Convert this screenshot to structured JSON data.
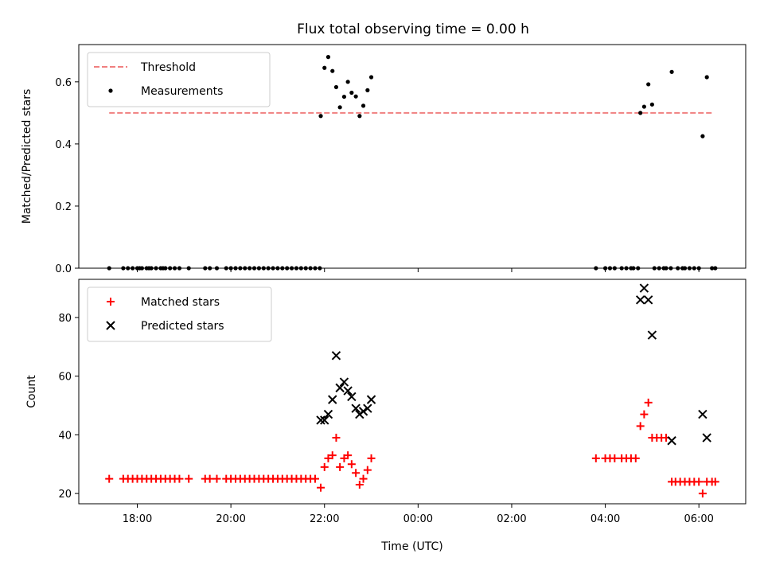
{
  "title": "Flux total observing time = 0.00 h",
  "xlabel": "Time (UTC)",
  "x_ticks": [
    "18:00",
    "20:00",
    "22:00",
    "00:00",
    "02:00",
    "04:00",
    "06:00"
  ],
  "x_tick_hours": [
    18,
    20,
    22,
    24,
    26,
    28,
    30
  ],
  "colors": {
    "threshold": "#f08080",
    "measurements": "#000000",
    "matched": "#ff0000",
    "predicted": "#000000"
  },
  "chart_data": [
    {
      "type": "scatter",
      "ylabel": "Matched/Predicted stars",
      "xlim": [
        16.75,
        31.0
      ],
      "ylim": [
        0,
        0.72
      ],
      "y_ticks": [
        0.0,
        0.2,
        0.4,
        0.6
      ],
      "y_tick_labels": [
        "0.0",
        "0.2",
        "0.4",
        "0.6"
      ],
      "legend_position": "top-left",
      "threshold": {
        "name": "Threshold",
        "y": 0.5,
        "x_range": [
          17.4,
          30.3
        ]
      },
      "series": [
        {
          "name": "Measurements",
          "points": [
            [
              17.4,
              0
            ],
            [
              17.7,
              0
            ],
            [
              17.8,
              0
            ],
            [
              17.9,
              0
            ],
            [
              18.0,
              0
            ],
            [
              18.05,
              0
            ],
            [
              18.1,
              0
            ],
            [
              18.2,
              0
            ],
            [
              18.25,
              0
            ],
            [
              18.3,
              0
            ],
            [
              18.4,
              0
            ],
            [
              18.5,
              0
            ],
            [
              18.55,
              0
            ],
            [
              18.6,
              0
            ],
            [
              18.7,
              0
            ],
            [
              18.8,
              0
            ],
            [
              18.9,
              0
            ],
            [
              19.1,
              0
            ],
            [
              19.45,
              0
            ],
            [
              19.55,
              0
            ],
            [
              19.7,
              0
            ],
            [
              19.9,
              0
            ],
            [
              20.0,
              0
            ],
            [
              20.1,
              0
            ],
            [
              20.2,
              0
            ],
            [
              20.3,
              0
            ],
            [
              20.4,
              0
            ],
            [
              20.5,
              0
            ],
            [
              20.6,
              0
            ],
            [
              20.7,
              0
            ],
            [
              20.8,
              0
            ],
            [
              20.9,
              0
            ],
            [
              21.0,
              0
            ],
            [
              21.1,
              0
            ],
            [
              21.2,
              0
            ],
            [
              21.3,
              0
            ],
            [
              21.4,
              0
            ],
            [
              21.5,
              0
            ],
            [
              21.6,
              0
            ],
            [
              21.7,
              0
            ],
            [
              21.8,
              0
            ],
            [
              21.9,
              0
            ],
            [
              21.92,
              0.49
            ],
            [
              22.0,
              0.645
            ],
            [
              22.08,
              0.68
            ],
            [
              22.17,
              0.635
            ],
            [
              22.25,
              0.583
            ],
            [
              22.33,
              0.518
            ],
            [
              22.42,
              0.552
            ],
            [
              22.5,
              0.6
            ],
            [
              22.58,
              0.565
            ],
            [
              22.67,
              0.553
            ],
            [
              22.75,
              0.49
            ],
            [
              22.83,
              0.523
            ],
            [
              22.92,
              0.573
            ],
            [
              23.0,
              0.615
            ],
            [
              27.8,
              0
            ],
            [
              28.0,
              0
            ],
            [
              28.1,
              0
            ],
            [
              28.2,
              0
            ],
            [
              28.35,
              0
            ],
            [
              28.45,
              0
            ],
            [
              28.55,
              0
            ],
            [
              28.6,
              0
            ],
            [
              28.7,
              0
            ],
            [
              28.75,
              0.5
            ],
            [
              28.83,
              0.52
            ],
            [
              28.92,
              0.592
            ],
            [
              29.0,
              0.527
            ],
            [
              29.05,
              0
            ],
            [
              29.15,
              0
            ],
            [
              29.25,
              0
            ],
            [
              29.3,
              0
            ],
            [
              29.4,
              0
            ],
            [
              29.55,
              0
            ],
            [
              29.65,
              0
            ],
            [
              29.7,
              0
            ],
            [
              29.8,
              0
            ],
            [
              29.9,
              0
            ],
            [
              30.0,
              0
            ],
            [
              29.42,
              0.632
            ],
            [
              30.08,
              0.425
            ],
            [
              30.17,
              0.615
            ],
            [
              30.28,
              0
            ],
            [
              30.35,
              0
            ]
          ]
        }
      ]
    },
    {
      "type": "scatter",
      "ylabel": "Count",
      "xlim": [
        16.75,
        31.0
      ],
      "ylim": [
        16.5,
        93
      ],
      "y_ticks": [
        20,
        40,
        60,
        80
      ],
      "y_tick_labels": [
        "20",
        "40",
        "60",
        "80"
      ],
      "legend_position": "top-left",
      "series": [
        {
          "name": "Matched stars",
          "marker": "plus",
          "points": [
            [
              17.4,
              25
            ],
            [
              17.7,
              25
            ],
            [
              17.8,
              25
            ],
            [
              17.9,
              25
            ],
            [
              18.0,
              25
            ],
            [
              18.1,
              25
            ],
            [
              18.2,
              25
            ],
            [
              18.3,
              25
            ],
            [
              18.4,
              25
            ],
            [
              18.5,
              25
            ],
            [
              18.6,
              25
            ],
            [
              18.7,
              25
            ],
            [
              18.8,
              25
            ],
            [
              18.9,
              25
            ],
            [
              19.1,
              25
            ],
            [
              19.45,
              25
            ],
            [
              19.55,
              25
            ],
            [
              19.7,
              25
            ],
            [
              19.9,
              25
            ],
            [
              20.0,
              25
            ],
            [
              20.1,
              25
            ],
            [
              20.2,
              25
            ],
            [
              20.3,
              25
            ],
            [
              20.4,
              25
            ],
            [
              20.5,
              25
            ],
            [
              20.6,
              25
            ],
            [
              20.7,
              25
            ],
            [
              20.8,
              25
            ],
            [
              20.9,
              25
            ],
            [
              21.0,
              25
            ],
            [
              21.1,
              25
            ],
            [
              21.2,
              25
            ],
            [
              21.3,
              25
            ],
            [
              21.4,
              25
            ],
            [
              21.5,
              25
            ],
            [
              21.6,
              25
            ],
            [
              21.7,
              25
            ],
            [
              21.8,
              25
            ],
            [
              21.92,
              22
            ],
            [
              22.0,
              29
            ],
            [
              22.08,
              32
            ],
            [
              22.17,
              33
            ],
            [
              22.25,
              39
            ],
            [
              22.33,
              29
            ],
            [
              22.42,
              32
            ],
            [
              22.5,
              33
            ],
            [
              22.58,
              30
            ],
            [
              22.67,
              27
            ],
            [
              22.75,
              23
            ],
            [
              22.83,
              25
            ],
            [
              22.92,
              28
            ],
            [
              23.0,
              32
            ],
            [
              27.8,
              32
            ],
            [
              28.0,
              32
            ],
            [
              28.1,
              32
            ],
            [
              28.2,
              32
            ],
            [
              28.35,
              32
            ],
            [
              28.45,
              32
            ],
            [
              28.55,
              32
            ],
            [
              28.65,
              32
            ],
            [
              28.75,
              43
            ],
            [
              28.83,
              47
            ],
            [
              28.92,
              51
            ],
            [
              29.0,
              39
            ],
            [
              29.1,
              39
            ],
            [
              29.2,
              39
            ],
            [
              29.3,
              39
            ],
            [
              29.42,
              24
            ],
            [
              29.5,
              24
            ],
            [
              29.6,
              24
            ],
            [
              29.7,
              24
            ],
            [
              29.8,
              24
            ],
            [
              29.9,
              24
            ],
            [
              30.0,
              24
            ],
            [
              30.08,
              20
            ],
            [
              30.17,
              24
            ],
            [
              30.28,
              24
            ],
            [
              30.35,
              24
            ]
          ]
        },
        {
          "name": "Predicted stars",
          "marker": "x",
          "points": [
            [
              21.92,
              45
            ],
            [
              22.0,
              45
            ],
            [
              22.08,
              47
            ],
            [
              22.17,
              52
            ],
            [
              22.25,
              67
            ],
            [
              22.33,
              56
            ],
            [
              22.42,
              58
            ],
            [
              22.5,
              55
            ],
            [
              22.58,
              53
            ],
            [
              22.67,
              49
            ],
            [
              22.75,
              47
            ],
            [
              22.83,
              48
            ],
            [
              22.92,
              49
            ],
            [
              23.0,
              52
            ],
            [
              28.75,
              86
            ],
            [
              28.83,
              90
            ],
            [
              28.92,
              86
            ],
            [
              29.0,
              74
            ],
            [
              29.42,
              38
            ],
            [
              30.08,
              47
            ],
            [
              30.17,
              39
            ]
          ]
        }
      ]
    }
  ]
}
